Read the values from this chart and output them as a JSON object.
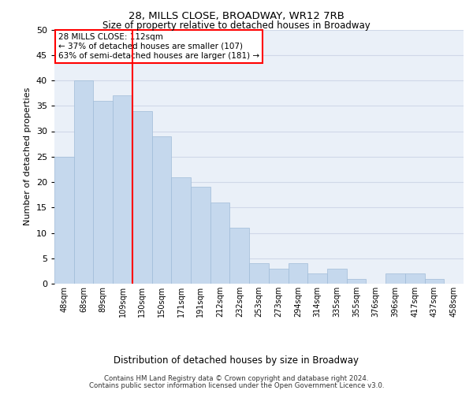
{
  "title1": "28, MILLS CLOSE, BROADWAY, WR12 7RB",
  "title2": "Size of property relative to detached houses in Broadway",
  "xlabel": "Distribution of detached houses by size in Broadway",
  "ylabel": "Number of detached properties",
  "categories": [
    "48sqm",
    "68sqm",
    "89sqm",
    "109sqm",
    "130sqm",
    "150sqm",
    "171sqm",
    "191sqm",
    "212sqm",
    "232sqm",
    "253sqm",
    "273sqm",
    "294sqm",
    "314sqm",
    "335sqm",
    "355sqm",
    "376sqm",
    "396sqm",
    "417sqm",
    "437sqm",
    "458sqm"
  ],
  "values": [
    25,
    40,
    36,
    37,
    34,
    29,
    21,
    19,
    16,
    11,
    4,
    3,
    4,
    2,
    3,
    1,
    0,
    2,
    2,
    1,
    0
  ],
  "bar_color": "#c5d8ed",
  "bar_edge_color": "#a0bcd8",
  "bar_width": 1.0,
  "vline_x": 3.5,
  "vline_color": "red",
  "annotation_text": "28 MILLS CLOSE: 112sqm\n← 37% of detached houses are smaller (107)\n63% of semi-detached houses are larger (181) →",
  "annotation_box_color": "white",
  "annotation_box_edge_color": "red",
  "ylim": [
    0,
    50
  ],
  "yticks": [
    0,
    5,
    10,
    15,
    20,
    25,
    30,
    35,
    40,
    45,
    50
  ],
  "grid_color": "#d0d8e8",
  "background_color": "#eaf0f8",
  "footer1": "Contains HM Land Registry data © Crown copyright and database right 2024.",
  "footer2": "Contains public sector information licensed under the Open Government Licence v3.0."
}
